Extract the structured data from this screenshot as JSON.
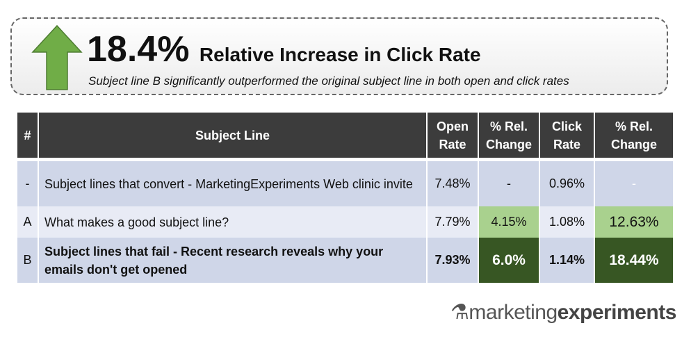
{
  "hero": {
    "headline_value": "18.4%",
    "headline_text": "Relative Increase in Click Rate",
    "tagline": "Subject line B significantly outperformed the original subject line in both open and click rates",
    "arrow_color": "#70ad47"
  },
  "table": {
    "headers": [
      "#",
      "Subject Line",
      "Open Rate",
      "% Rel. Change",
      "Click Rate",
      "% Rel. Change"
    ],
    "rows": [
      {
        "id": "-",
        "subject": "Subject lines that convert - MarketingExperiments Web clinic invite",
        "open_rate": "7.48%",
        "open_change": "-",
        "click_rate": "0.96%",
        "click_change": "-"
      },
      {
        "id": "A",
        "subject": "What makes a good subject line?",
        "open_rate": "7.79%",
        "open_change": "4.15%",
        "click_rate": "1.08%",
        "click_change": "12.63%"
      },
      {
        "id": "B",
        "subject": "Subject lines that fail - Recent research reveals why your emails don't get opened",
        "open_rate": "7.93%",
        "open_change": "6.0%",
        "click_rate": "1.14%",
        "click_change": "18.44%"
      }
    ]
  },
  "logo": {
    "part1": "marketing",
    "part2": "experiments"
  }
}
